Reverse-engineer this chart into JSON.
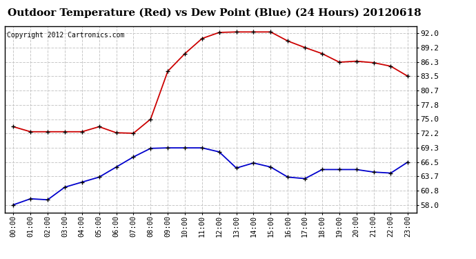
{
  "title": "Outdoor Temperature (Red) vs Dew Point (Blue) (24 Hours) 20120618",
  "copyright": "Copyright 2012 Cartronics.com",
  "x_labels": [
    "00:00",
    "01:00",
    "02:00",
    "03:00",
    "04:00",
    "05:00",
    "06:00",
    "07:00",
    "08:00",
    "09:00",
    "10:00",
    "11:00",
    "12:00",
    "13:00",
    "14:00",
    "15:00",
    "16:00",
    "17:00",
    "18:00",
    "19:00",
    "20:00",
    "21:00",
    "22:00",
    "23:00"
  ],
  "temp_red": [
    73.5,
    72.5,
    72.5,
    72.5,
    72.5,
    73.5,
    72.3,
    72.2,
    75.0,
    84.5,
    88.0,
    91.0,
    92.2,
    92.3,
    92.3,
    92.3,
    90.5,
    89.2,
    88.0,
    86.3,
    86.5,
    86.2,
    85.5,
    83.5
  ],
  "dew_blue": [
    58.0,
    59.2,
    59.0,
    61.5,
    62.5,
    63.5,
    65.5,
    67.5,
    69.2,
    69.3,
    69.3,
    69.3,
    68.5,
    65.3,
    66.3,
    65.5,
    63.5,
    63.2,
    65.0,
    65.0,
    65.0,
    64.5,
    64.3,
    66.5
  ],
  "y_ticks": [
    58.0,
    60.8,
    63.7,
    66.5,
    69.3,
    72.2,
    75.0,
    77.8,
    80.7,
    83.5,
    86.3,
    89.2,
    92.0
  ],
  "ylim": [
    56.5,
    93.5
  ],
  "bg_color": "#ffffff",
  "plot_bg_color": "#ffffff",
  "grid_color": "#c8c8c8",
  "red_color": "#cc0000",
  "blue_color": "#0000cc",
  "title_fontsize": 11,
  "copyright_fontsize": 7,
  "tick_fontsize": 7.5,
  "ytick_fontsize": 8
}
